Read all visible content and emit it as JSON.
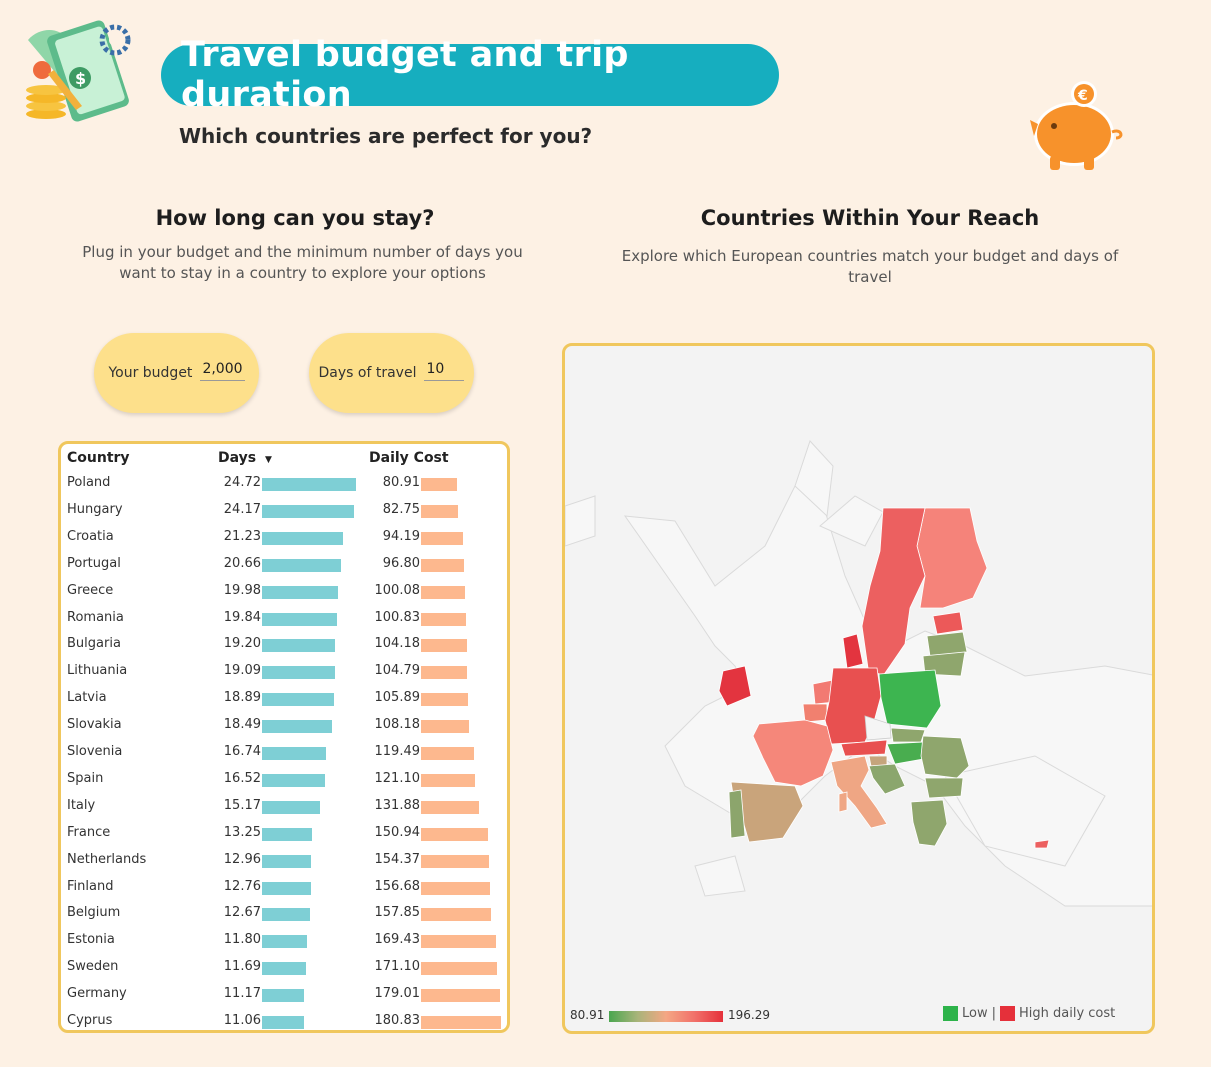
{
  "header": {
    "title": "Travel budget and trip duration",
    "subtitle": "Which countries are perfect for you?",
    "logo_icon": "money-gears-icon",
    "piggy_icon": "piggy-bank-icon"
  },
  "left_section": {
    "title": "How long can you stay?",
    "description": "Plug in your budget and the minimum number of days you want to stay in a country to explore your options"
  },
  "right_section": {
    "title": "Countries Within Your Reach",
    "description": "Explore which European countries match your budget and days of travel"
  },
  "inputs": {
    "budget_label": "Your budget",
    "budget_value": "2,000",
    "days_label": "Days of travel",
    "days_value": "10"
  },
  "chart_data": [
    {
      "type": "table",
      "columns": [
        "Country",
        "Days",
        "Daily Cost"
      ],
      "sort_indicator": "▼",
      "rows": [
        {
          "country": "Poland",
          "days": "24.72",
          "cost": "80.91"
        },
        {
          "country": "Hungary",
          "days": "24.17",
          "cost": "82.75"
        },
        {
          "country": "Croatia",
          "days": "21.23",
          "cost": "94.19"
        },
        {
          "country": "Portugal",
          "days": "20.66",
          "cost": "96.80"
        },
        {
          "country": "Greece",
          "days": "19.98",
          "cost": "100.08"
        },
        {
          "country": "Romania",
          "days": "19.84",
          "cost": "100.83"
        },
        {
          "country": "Bulgaria",
          "days": "19.20",
          "cost": "104.18"
        },
        {
          "country": "Lithuania",
          "days": "19.09",
          "cost": "104.79"
        },
        {
          "country": "Latvia",
          "days": "18.89",
          "cost": "105.89"
        },
        {
          "country": "Slovakia",
          "days": "18.49",
          "cost": "108.18"
        },
        {
          "country": "Slovenia",
          "days": "16.74",
          "cost": "119.49"
        },
        {
          "country": "Spain",
          "days": "16.52",
          "cost": "121.10"
        },
        {
          "country": "Italy",
          "days": "15.17",
          "cost": "131.88"
        },
        {
          "country": "France",
          "days": "13.25",
          "cost": "150.94"
        },
        {
          "country": "Netherlands",
          "days": "12.96",
          "cost": "154.37"
        },
        {
          "country": "Finland",
          "days": "12.76",
          "cost": "156.68"
        },
        {
          "country": "Belgium",
          "days": "12.67",
          "cost": "157.85"
        },
        {
          "country": "Estonia",
          "days": "11.80",
          "cost": "169.43"
        },
        {
          "country": "Sweden",
          "days": "11.69",
          "cost": "171.10"
        },
        {
          "country": "Germany",
          "days": "11.17",
          "cost": "179.01"
        },
        {
          "country": "Cyprus",
          "days": "11.06",
          "cost": "180.83"
        }
      ]
    },
    {
      "type": "heatmap",
      "subtype": "choropleth-map-europe",
      "color_scale": {
        "min": "80.91",
        "max": "196.29",
        "low_color": "#2db34a",
        "high_color": "#e5303a"
      },
      "legend": {
        "low_label": "Low",
        "separator": "|",
        "high_label": "High daily cost"
      },
      "colors": {
        "Poland": "#3db550",
        "Hungary": "#49ad4f",
        "Croatia": "#8ba66d",
        "Portugal": "#8ca56c",
        "Greece": "#8fa66d",
        "Romania": "#8fa66d",
        "Bulgaria": "#8fa66d",
        "Lithuania": "#8fa66d",
        "Latvia": "#8fa66d",
        "Slovakia": "#8fa66d",
        "Slovenia": "#c5a57c",
        "Spain": "#c9a47b",
        "Italy": "#efa684",
        "France": "#f5877a",
        "Netherlands": "#f27a72",
        "Finland": "#f5837a",
        "Belgium": "#f1806f",
        "Estonia": "#ec5959",
        "Sweden": "#ec6060",
        "Germany": "#e85050",
        "Austria": "#e85050",
        "Ireland": "#e3343f",
        "Denmark": "#e3343f",
        "Czechia": "#f5f5f5"
      }
    }
  ]
}
